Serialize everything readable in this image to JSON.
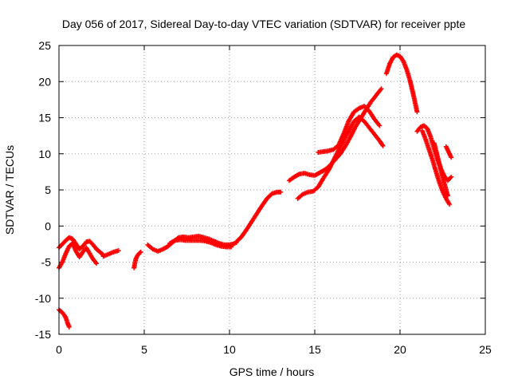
{
  "chart_data": {
    "type": "scatter",
    "title": "Day 056 of 2017, Sidereal Day-to-day VTEC variation (SDTVAR) for receiver ppte",
    "xlabel": "GPS time / hours",
    "ylabel": "SDTVAR / TECUs",
    "xlim": [
      0,
      25
    ],
    "ylim": [
      -15,
      25
    ],
    "xticks": [
      0,
      5,
      10,
      15,
      20,
      25
    ],
    "yticks": [
      -15,
      -10,
      -5,
      0,
      5,
      10,
      15,
      20,
      25
    ],
    "grid": true,
    "marker": "+",
    "color": "#ff0000",
    "series": [
      {
        "name": "seg1",
        "x": [
          0.0,
          0.2,
          0.4,
          0.6,
          0.8,
          1.0,
          1.2,
          1.4,
          1.6,
          1.8,
          2.0,
          2.2,
          2.4,
          2.6
        ],
        "y": [
          -3.0,
          -2.5,
          -2.0,
          -1.6,
          -1.8,
          -2.5,
          -3.2,
          -2.8,
          -2.2,
          -2.1,
          -2.6,
          -3.2,
          -3.6,
          -4.0
        ]
      },
      {
        "name": "seg2",
        "x": [
          0.0,
          0.2,
          0.4,
          0.6,
          0.8,
          1.0,
          1.2,
          1.4,
          1.6,
          1.8,
          2.0,
          2.2
        ],
        "y": [
          -5.8,
          -5.0,
          -3.8,
          -2.8,
          -2.4,
          -3.5,
          -4.3,
          -3.6,
          -3.0,
          -3.8,
          -4.6,
          -5.2
        ]
      },
      {
        "name": "seg3",
        "x": [
          2.6,
          2.9,
          3.2,
          3.5
        ],
        "y": [
          -4.2,
          -3.9,
          -3.6,
          -3.4
        ]
      },
      {
        "name": "seg4",
        "x": [
          0.0,
          0.1,
          0.2,
          0.3,
          0.4,
          0.5,
          0.6
        ],
        "y": [
          -11.6,
          -11.8,
          -12.0,
          -12.3,
          -12.7,
          -13.4,
          -14.0
        ]
      },
      {
        "name": "seg5",
        "x": [
          4.4,
          4.5,
          4.6,
          4.7,
          4.8
        ],
        "y": [
          -5.8,
          -4.6,
          -4.1,
          -3.8,
          -3.6
        ]
      },
      {
        "name": "seg6",
        "x": [
          5.2,
          5.5,
          5.8,
          6.1,
          6.4,
          6.7,
          7.0,
          7.3,
          7.6,
          7.9,
          8.2,
          8.5,
          8.8,
          9.1,
          9.4,
          9.7,
          10.0,
          10.2,
          10.4
        ],
        "y": [
          -2.6,
          -3.2,
          -3.5,
          -3.2,
          -2.8,
          -2.2,
          -1.6,
          -1.5,
          -1.6,
          -1.5,
          -1.4,
          -1.6,
          -1.8,
          -2.1,
          -2.4,
          -2.6,
          -2.6,
          -2.5,
          -2.3
        ]
      },
      {
        "name": "seg7",
        "x": [
          6.5,
          6.8,
          7.1,
          7.4,
          7.7,
          8.0,
          8.3,
          8.6,
          8.9,
          9.2,
          9.5,
          9.8,
          10.1
        ],
        "y": [
          -2.4,
          -2.0,
          -1.9,
          -2.0,
          -2.0,
          -2.0,
          -2.0,
          -2.1,
          -2.3,
          -2.6,
          -2.8,
          -2.9,
          -2.9
        ]
      },
      {
        "name": "seg8",
        "x": [
          10.4,
          10.7,
          11.0,
          11.3,
          11.6,
          11.9,
          12.2,
          12.5,
          12.8,
          13.0
        ],
        "y": [
          -2.2,
          -1.5,
          -0.5,
          0.6,
          1.7,
          2.8,
          3.8,
          4.5,
          4.7,
          4.7
        ]
      },
      {
        "name": "seg9",
        "x": [
          13.5,
          13.8,
          14.1,
          14.4,
          14.7,
          15.0,
          15.3,
          15.6,
          15.9,
          16.2,
          16.5,
          16.8,
          17.1,
          17.4,
          17.7,
          18.0,
          18.3,
          18.6,
          18.9
        ],
        "y": [
          6.3,
          6.8,
          7.2,
          7.3,
          7.1,
          7.0,
          7.4,
          7.8,
          8.4,
          9.2,
          10.0,
          11.1,
          12.4,
          13.8,
          14.9,
          16.1,
          17.2,
          18.1,
          19.0
        ]
      },
      {
        "name": "seg10",
        "x": [
          14.0,
          14.3,
          14.6,
          14.9,
          15.2,
          15.5,
          15.8,
          16.1,
          16.4,
          16.7,
          17.0,
          17.3,
          17.6,
          17.9,
          18.2,
          18.5,
          18.8,
          19.0
        ],
        "y": [
          3.8,
          4.4,
          4.7,
          4.8,
          5.4,
          6.6,
          7.7,
          9.1,
          10.5,
          11.9,
          13.2,
          14.5,
          15.1,
          14.5,
          13.6,
          12.7,
          11.8,
          11.1
        ]
      },
      {
        "name": "seg11",
        "x": [
          15.2,
          15.5,
          15.8,
          16.1,
          16.4,
          16.7,
          17.0,
          17.3,
          17.6,
          17.9,
          18.2,
          18.5,
          18.8
        ],
        "y": [
          10.2,
          10.3,
          10.4,
          10.6,
          11.2,
          12.8,
          14.6,
          15.8,
          16.3,
          16.6,
          15.9,
          14.8,
          13.9
        ]
      },
      {
        "name": "seg12",
        "x": [
          19.2,
          19.4,
          19.6,
          19.8,
          20.0,
          20.2,
          20.4,
          20.6,
          20.8,
          21.0
        ],
        "y": [
          21.1,
          22.5,
          23.4,
          23.7,
          23.5,
          22.8,
          21.6,
          20.0,
          18.0,
          15.8
        ]
      },
      {
        "name": "seg13",
        "x": [
          21.0,
          21.2,
          21.4,
          21.6,
          21.8,
          22.0,
          22.2,
          22.4,
          22.6,
          22.8,
          23.0
        ],
        "y": [
          13.1,
          13.7,
          13.9,
          13.5,
          12.3,
          10.7,
          9.2,
          7.9,
          6.9,
          6.3,
          6.8
        ]
      },
      {
        "name": "seg14",
        "x": [
          21.3,
          21.5,
          21.7,
          21.9,
          22.1,
          22.3,
          22.5,
          22.7,
          22.9
        ],
        "y": [
          13.2,
          12.0,
          10.6,
          9.2,
          7.6,
          6.1,
          4.8,
          3.8,
          3.0
        ]
      },
      {
        "name": "seg15",
        "x": [
          22.0,
          22.2,
          22.4,
          22.6,
          22.8
        ],
        "y": [
          11.5,
          9.6,
          7.7,
          5.9,
          4.2
        ]
      },
      {
        "name": "seg16",
        "x": [
          22.7,
          22.8,
          22.9,
          23.0
        ],
        "y": [
          11.0,
          10.5,
          10.0,
          9.5
        ]
      }
    ]
  }
}
